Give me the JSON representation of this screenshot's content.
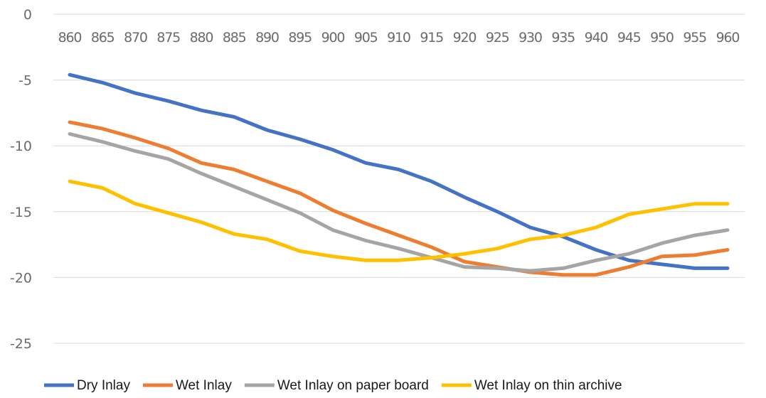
{
  "chart_data": {
    "type": "line",
    "title": "",
    "xlabel": "",
    "ylabel": "",
    "ylim": [
      -25,
      0
    ],
    "yticks": [
      0,
      -5,
      -10,
      -15,
      -20,
      -25
    ],
    "x": [
      860,
      865,
      870,
      875,
      880,
      885,
      890,
      895,
      900,
      905,
      910,
      915,
      920,
      925,
      930,
      935,
      940,
      945,
      950,
      955,
      960
    ],
    "x_tick_labels": [
      "860",
      "865",
      "870",
      "875",
      "880",
      "885",
      "890",
      "895",
      "900",
      "905",
      "910",
      "915",
      "920",
      "925",
      "930",
      "935",
      "940",
      "945",
      "950",
      "955",
      "960"
    ],
    "x_axis_position": "top",
    "grid": true,
    "legend_position": "bottom",
    "series": [
      {
        "name": "Dry Inlay",
        "color": "#4472c4",
        "values": [
          -4.6,
          -5.2,
          -6.0,
          -6.6,
          -7.3,
          -7.8,
          -8.8,
          -9.5,
          -10.3,
          -11.3,
          -11.8,
          -12.7,
          -13.9,
          -15.0,
          -16.2,
          -16.9,
          -17.9,
          -18.7,
          -19.0,
          -19.3,
          -19.3
        ]
      },
      {
        "name": "Wet Inlay",
        "color": "#ed7d31",
        "values": [
          -8.2,
          -8.7,
          -9.4,
          -10.2,
          -11.3,
          -11.8,
          -12.7,
          -13.6,
          -14.9,
          -15.9,
          -16.8,
          -17.7,
          -18.8,
          -19.2,
          -19.6,
          -19.8,
          -19.8,
          -19.2,
          -18.4,
          -18.3,
          -17.9
        ]
      },
      {
        "name": "Wet Inlay on paper board",
        "color": "#a5a5a5",
        "values": [
          -9.1,
          -9.7,
          -10.4,
          -11.0,
          -12.1,
          -13.1,
          -14.1,
          -15.1,
          -16.4,
          -17.2,
          -17.8,
          -18.5,
          -19.2,
          -19.3,
          -19.5,
          -19.3,
          -18.7,
          -18.2,
          -17.4,
          -16.8,
          -16.4
        ]
      },
      {
        "name": "Wet Inlay on thin archive",
        "color": "#ffc000",
        "values": [
          -12.7,
          -13.2,
          -14.4,
          -15.1,
          -15.8,
          -16.7,
          -17.1,
          -18.0,
          -18.4,
          -18.7,
          -18.7,
          -18.5,
          -18.2,
          -17.8,
          -17.1,
          -16.8,
          -16.2,
          -15.2,
          -14.8,
          -14.4,
          -14.4
        ]
      }
    ]
  }
}
